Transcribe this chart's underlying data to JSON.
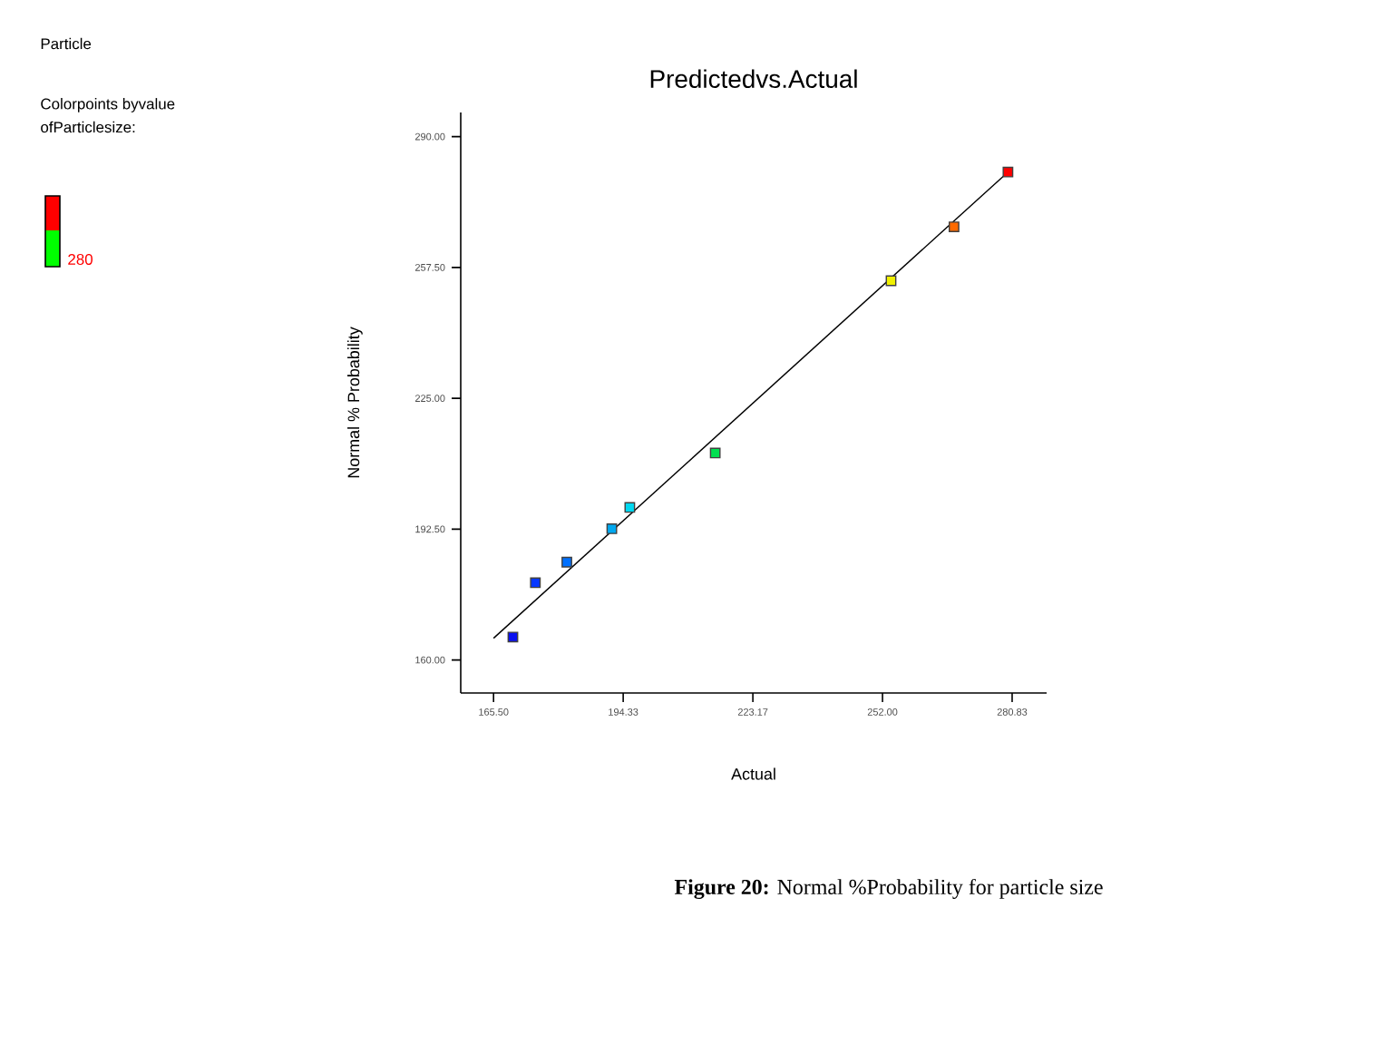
{
  "chart_data": {
    "type": "scatter",
    "title": "Predictedvs.Actual",
    "xlabel": "Actual",
    "ylabel": "Normal  % Probability",
    "series": [
      {
        "x": [
          169.8,
          174.8,
          181.8,
          191.8,
          195.8,
          214.8,
          253.9,
          267.9,
          279.9
        ],
        "values": [
          165.7,
          179.2,
          184.3,
          192.6,
          197.9,
          211.4,
          254.2,
          267.6,
          281.2
        ],
        "colors": [
          "#0a10f0",
          "#0838ff",
          "#0070ff",
          "#00a8f0",
          "#00d8f0",
          "#00e050",
          "#f0f000",
          "#ff6a00",
          "#ff0000"
        ]
      },
      {
        "type": "line",
        "x": [
          165.5,
          279.9
        ],
        "values": [
          165.4,
          281.2
        ],
        "color": "#000000",
        "marker": "none"
      }
    ],
    "marker": "square",
    "grid": false,
    "xlim": [
      158.2,
      288.5
    ],
    "ylim": [
      151.8,
      296
    ],
    "xticks": [
      {
        "value": 165.5,
        "label": "165.50"
      },
      {
        "value": 194.33,
        "label": "194.33"
      },
      {
        "value": 223.17,
        "label": "223.17"
      },
      {
        "value": 252,
        "label": "252.00"
      },
      {
        "value": 280.83,
        "label": "280.83"
      }
    ],
    "yticks": [
      {
        "value": 160,
        "label": "160.00"
      },
      {
        "value": 192.5,
        "label": "192.50"
      },
      {
        "value": 225,
        "label": "225.00"
      },
      {
        "value": 257.5,
        "label": "257.50"
      },
      {
        "value": 290,
        "label": "290.00"
      }
    ],
    "annotations": [
      "Particle",
      "Colorpoints byvalue",
      "ofParticlesize:",
      "280",
      "**Figure 20:** Normal %Probability for particle size"
    ]
  }
}
